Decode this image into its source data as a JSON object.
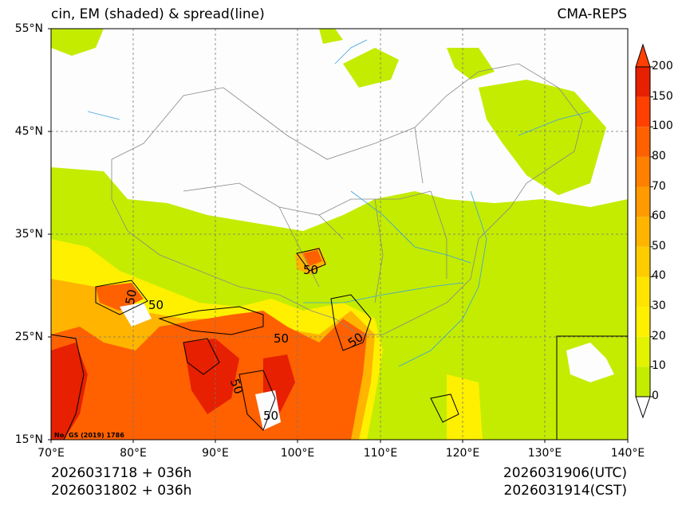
{
  "header": {
    "title_left": "cin, EM (shaded) & spread(line)",
    "title_right": "CMA-REPS"
  },
  "axes": {
    "lat_labels": [
      "55°N",
      "45°N",
      "35°N",
      "25°N",
      "15°N"
    ],
    "lon_labels": [
      "70°E",
      "80°E",
      "90°E",
      "100°E",
      "110°E",
      "120°E",
      "130°E",
      "140°E"
    ]
  },
  "colorbar": {
    "levels": [
      "0",
      "10",
      "20",
      "30",
      "40",
      "50",
      "60",
      "70",
      "80",
      "100",
      "150",
      "200"
    ],
    "colors": [
      "#c3ec00",
      "#e3f200",
      "#fff000",
      "#ffe400",
      "#ffcc00",
      "#ffb400",
      "#ff9a00",
      "#ff8000",
      "#ff6000",
      "#ff4000",
      "#e62000"
    ],
    "over_color": "#ff4000"
  },
  "contours": {
    "labels": [
      "50",
      "50",
      "50",
      "50",
      "50",
      "50",
      "50"
    ]
  },
  "approval_note": "No. GS (2019) 1786",
  "footer": {
    "init_1": "2026031718  +  036h",
    "init_2": "2026031802  +  036h",
    "valid_utc": "2026031906(UTC)",
    "valid_cst": "2026031914(CST)"
  }
}
